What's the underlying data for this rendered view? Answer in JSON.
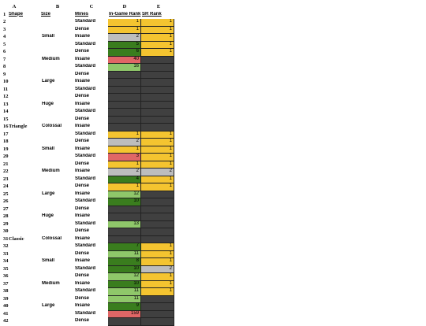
{
  "columns": [
    "A",
    "B",
    "C",
    "D",
    "E"
  ],
  "headers": {
    "shape": "Shape",
    "size": "Size",
    "mines": "Mines",
    "ingame": "In-Game Rank",
    "sr": "SR Rank"
  },
  "colors": {
    "yellow": "#f4c430",
    "gray": "#bdbdbd",
    "darkgreen": "#3a7d1e",
    "lightgreen": "#8fc76a",
    "red": "#e06666",
    "dark": "#404040"
  },
  "size_labels": [
    {
      "row": 4,
      "text": "Small"
    },
    {
      "row": 7,
      "text": "Medium"
    },
    {
      "row": 10,
      "text": "Large"
    },
    {
      "row": 13,
      "text": "Huge"
    },
    {
      "row": 16,
      "text": "Colossal"
    },
    {
      "row": 19,
      "text": "Small"
    },
    {
      "row": 22,
      "text": "Medium"
    },
    {
      "row": 25,
      "text": "Large"
    },
    {
      "row": 28,
      "text": "Huge"
    },
    {
      "row": 31,
      "text": "Colossal"
    },
    {
      "row": 34,
      "text": "Small"
    },
    {
      "row": 37,
      "text": "Medium"
    },
    {
      "row": 40,
      "text": "Large"
    }
  ],
  "shape_labels": [
    {
      "row": 16,
      "text": "Triangle"
    },
    {
      "row": 31,
      "text": "Classic"
    }
  ],
  "rows": [
    {
      "n": "2",
      "mines": "Standard",
      "d": "1",
      "dc": "yellow",
      "e": "1",
      "ec": "yellow"
    },
    {
      "n": "3",
      "mines": "Dense",
      "d": "1",
      "dc": "yellow",
      "e": "1",
      "ec": "yellow"
    },
    {
      "n": "4",
      "mines": "Insane",
      "d": "2",
      "dc": "gray",
      "e": "1",
      "ec": "yellow"
    },
    {
      "n": "5",
      "mines": "Standard",
      "d": "5",
      "dc": "darkgreen",
      "e": "1",
      "ec": "yellow"
    },
    {
      "n": "6",
      "mines": "Dense",
      "d": "6",
      "dc": "darkgreen",
      "e": "1",
      "ec": "yellow"
    },
    {
      "n": "7",
      "mines": "Insane",
      "d": "40",
      "dc": "red",
      "e": "",
      "ec": "dark"
    },
    {
      "n": "8",
      "mines": "Standard",
      "d": "16",
      "dc": "lightgreen",
      "e": "",
      "ec": "dark"
    },
    {
      "n": "9",
      "mines": "Dense",
      "d": "",
      "dc": "dark",
      "e": "",
      "ec": "dark"
    },
    {
      "n": "10",
      "mines": "Insane",
      "d": "",
      "dc": "dark",
      "e": "",
      "ec": "dark"
    },
    {
      "n": "11",
      "mines": "Standard",
      "d": "",
      "dc": "dark",
      "e": "",
      "ec": "dark"
    },
    {
      "n": "12",
      "mines": "Dense",
      "d": "",
      "dc": "dark",
      "e": "",
      "ec": "dark"
    },
    {
      "n": "13",
      "mines": "Insane",
      "d": "",
      "dc": "dark",
      "e": "",
      "ec": "dark"
    },
    {
      "n": "14",
      "mines": "Standard",
      "d": "",
      "dc": "dark",
      "e": "",
      "ec": "dark"
    },
    {
      "n": "15",
      "mines": "Dense",
      "d": "",
      "dc": "dark",
      "e": "",
      "ec": "dark"
    },
    {
      "n": "16",
      "mines": "Insane",
      "d": "",
      "dc": "dark",
      "e": "",
      "ec": "dark"
    },
    {
      "n": "17",
      "mines": "Standard",
      "d": "1",
      "dc": "yellow",
      "e": "1",
      "ec": "yellow"
    },
    {
      "n": "18",
      "mines": "Dense",
      "d": "2",
      "dc": "gray",
      "e": "1",
      "ec": "yellow"
    },
    {
      "n": "19",
      "mines": "Insane",
      "d": "1",
      "dc": "yellow",
      "e": "1",
      "ec": "yellow"
    },
    {
      "n": "20",
      "mines": "Standard",
      "d": "3",
      "dc": "red",
      "e": "1",
      "ec": "yellow"
    },
    {
      "n": "21",
      "mines": "Dense",
      "d": "1",
      "dc": "yellow",
      "e": "1",
      "ec": "yellow"
    },
    {
      "n": "22",
      "mines": "Insane",
      "d": "2",
      "dc": "gray",
      "e": "2",
      "ec": "gray"
    },
    {
      "n": "23",
      "mines": "Standard",
      "d": "4",
      "dc": "darkgreen",
      "e": "1",
      "ec": "yellow"
    },
    {
      "n": "24",
      "mines": "Dense",
      "d": "1",
      "dc": "yellow",
      "e": "1",
      "ec": "yellow"
    },
    {
      "n": "25",
      "mines": "Insane",
      "d": "12",
      "dc": "lightgreen",
      "e": "",
      "ec": "dark"
    },
    {
      "n": "26",
      "mines": "Standard",
      "d": "10",
      "dc": "darkgreen",
      "e": "",
      "ec": "dark"
    },
    {
      "n": "27",
      "mines": "Dense",
      "d": "",
      "dc": "dark",
      "e": "",
      "ec": "dark"
    },
    {
      "n": "28",
      "mines": "Insane",
      "d": "",
      "dc": "dark",
      "e": "",
      "ec": "dark"
    },
    {
      "n": "29",
      "mines": "Standard",
      "d": "13",
      "dc": "lightgreen",
      "e": "",
      "ec": "dark"
    },
    {
      "n": "30",
      "mines": "Dense",
      "d": "",
      "dc": "dark",
      "e": "",
      "ec": "dark"
    },
    {
      "n": "31",
      "mines": "Insane",
      "d": "",
      "dc": "dark",
      "e": "",
      "ec": "dark"
    },
    {
      "n": "32",
      "mines": "Standard",
      "d": "7",
      "dc": "darkgreen",
      "e": "1",
      "ec": "yellow"
    },
    {
      "n": "33",
      "mines": "Dense",
      "d": "11",
      "dc": "lightgreen",
      "e": "1",
      "ec": "yellow"
    },
    {
      "n": "34",
      "mines": "Insane",
      "d": "8",
      "dc": "darkgreen",
      "e": "1",
      "ec": "yellow"
    },
    {
      "n": "35",
      "mines": "Standard",
      "d": "10",
      "dc": "darkgreen",
      "e": "2",
      "ec": "gray"
    },
    {
      "n": "36",
      "mines": "Dense",
      "d": "12",
      "dc": "lightgreen",
      "e": "1",
      "ec": "yellow"
    },
    {
      "n": "37",
      "mines": "Insane",
      "d": "10",
      "dc": "darkgreen",
      "e": "1",
      "ec": "yellow"
    },
    {
      "n": "38",
      "mines": "Standard",
      "d": "11",
      "dc": "lightgreen",
      "e": "1",
      "ec": "yellow"
    },
    {
      "n": "39",
      "mines": "Dense",
      "d": "11",
      "dc": "lightgreen",
      "e": "",
      "ec": "dark"
    },
    {
      "n": "40",
      "mines": "Insane",
      "d": "9",
      "dc": "darkgreen",
      "e": "",
      "ec": "dark"
    },
    {
      "n": "41",
      "mines": "Standard",
      "d": "159",
      "dc": "red",
      "e": "",
      "ec": "dark"
    },
    {
      "n": "42",
      "mines": "Dense",
      "d": "",
      "dc": "dark",
      "e": "",
      "ec": "dark"
    }
  ]
}
